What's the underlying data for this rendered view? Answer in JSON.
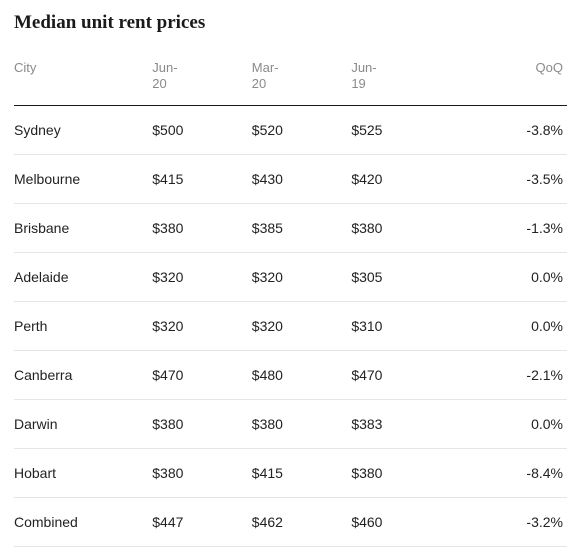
{
  "title": "Median unit rent prices",
  "table": {
    "columns": [
      "City",
      "Jun-\n20",
      "Mar-\n20",
      "Jun-\n19",
      "QoQ"
    ],
    "rows": [
      [
        "Sydney",
        "$500",
        "$520",
        "$525",
        "-3.8%"
      ],
      [
        "Melbourne",
        "$415",
        "$430",
        "$420",
        "-3.5%"
      ],
      [
        "Brisbane",
        "$380",
        "$385",
        "$380",
        "-1.3%"
      ],
      [
        "Adelaide",
        "$320",
        "$320",
        "$305",
        "0.0%"
      ],
      [
        "Perth",
        "$320",
        "$320",
        "$310",
        "0.0%"
      ],
      [
        "Canberra",
        "$470",
        "$480",
        "$470",
        "-2.1%"
      ],
      [
        "Darwin",
        "$380",
        "$380",
        "$383",
        "0.0%"
      ],
      [
        "Hobart",
        "$380",
        "$415",
        "$380",
        "-8.4%"
      ],
      [
        "Combined",
        "$447",
        "$462",
        "$460",
        "-3.2%"
      ]
    ]
  },
  "style": {
    "title_fontsize": "19px",
    "header_fontsize": "13px",
    "body_fontsize": "14px",
    "title_color": "#1a1a1a",
    "header_color": "#8a8a8a",
    "body_color": "#222222",
    "header_border_color": "#1a1a1a",
    "row_border_color": "#e5e5e5",
    "background_color": "#ffffff"
  }
}
